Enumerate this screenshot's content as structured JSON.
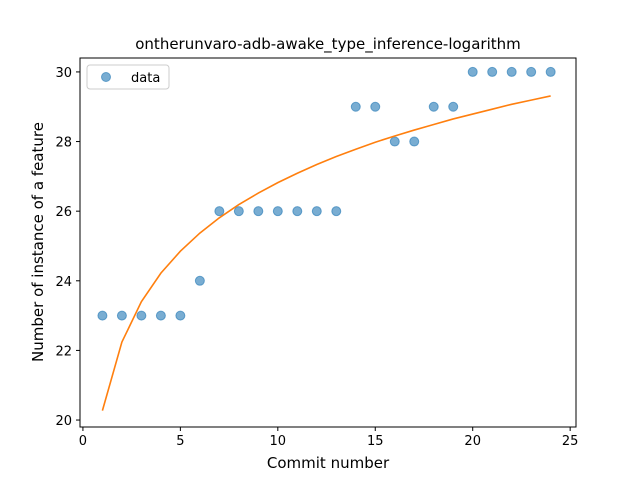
{
  "chart_data": {
    "type": "scatter",
    "title": "ontherunvaro-adb-awake_type_inference-logarithm",
    "xlabel": "Commit number",
    "ylabel": "Number of instance of a feature",
    "xlim": [
      -0.15,
      25.3
    ],
    "ylim": [
      19.8,
      30.4
    ],
    "xticks": [
      0,
      5,
      10,
      15,
      20,
      25
    ],
    "yticks": [
      20,
      22,
      24,
      26,
      28,
      30
    ],
    "grid": false,
    "legend": {
      "placement": "top-left",
      "entries": [
        "data"
      ]
    },
    "series": [
      {
        "name": "data",
        "kind": "scatter",
        "color": "#1f77b4",
        "x": [
          1,
          2,
          3,
          4,
          5,
          6,
          7,
          8,
          9,
          10,
          11,
          12,
          13,
          14,
          15,
          16,
          17,
          18,
          19,
          20,
          21,
          22,
          23,
          24
        ],
        "y": [
          23,
          23,
          23,
          23,
          23,
          24,
          26,
          26,
          26,
          26,
          26,
          26,
          26,
          29,
          29,
          28,
          28,
          29,
          29,
          30,
          30,
          30,
          30,
          30
        ]
      },
      {
        "kind": "line",
        "color": "#ff7f0e",
        "x": [
          1,
          2,
          3,
          4,
          5,
          6,
          7,
          8,
          9,
          10,
          11,
          12,
          13,
          14,
          15,
          16,
          17,
          18,
          19,
          20,
          21,
          22,
          23,
          24
        ],
        "y": [
          20.27,
          22.24,
          23.4,
          24.22,
          24.85,
          25.37,
          25.81,
          26.19,
          26.52,
          26.82,
          27.09,
          27.34,
          27.57,
          27.78,
          27.98,
          28.16,
          28.33,
          28.49,
          28.65,
          28.79,
          28.93,
          29.07,
          29.19,
          29.31
        ]
      }
    ]
  }
}
